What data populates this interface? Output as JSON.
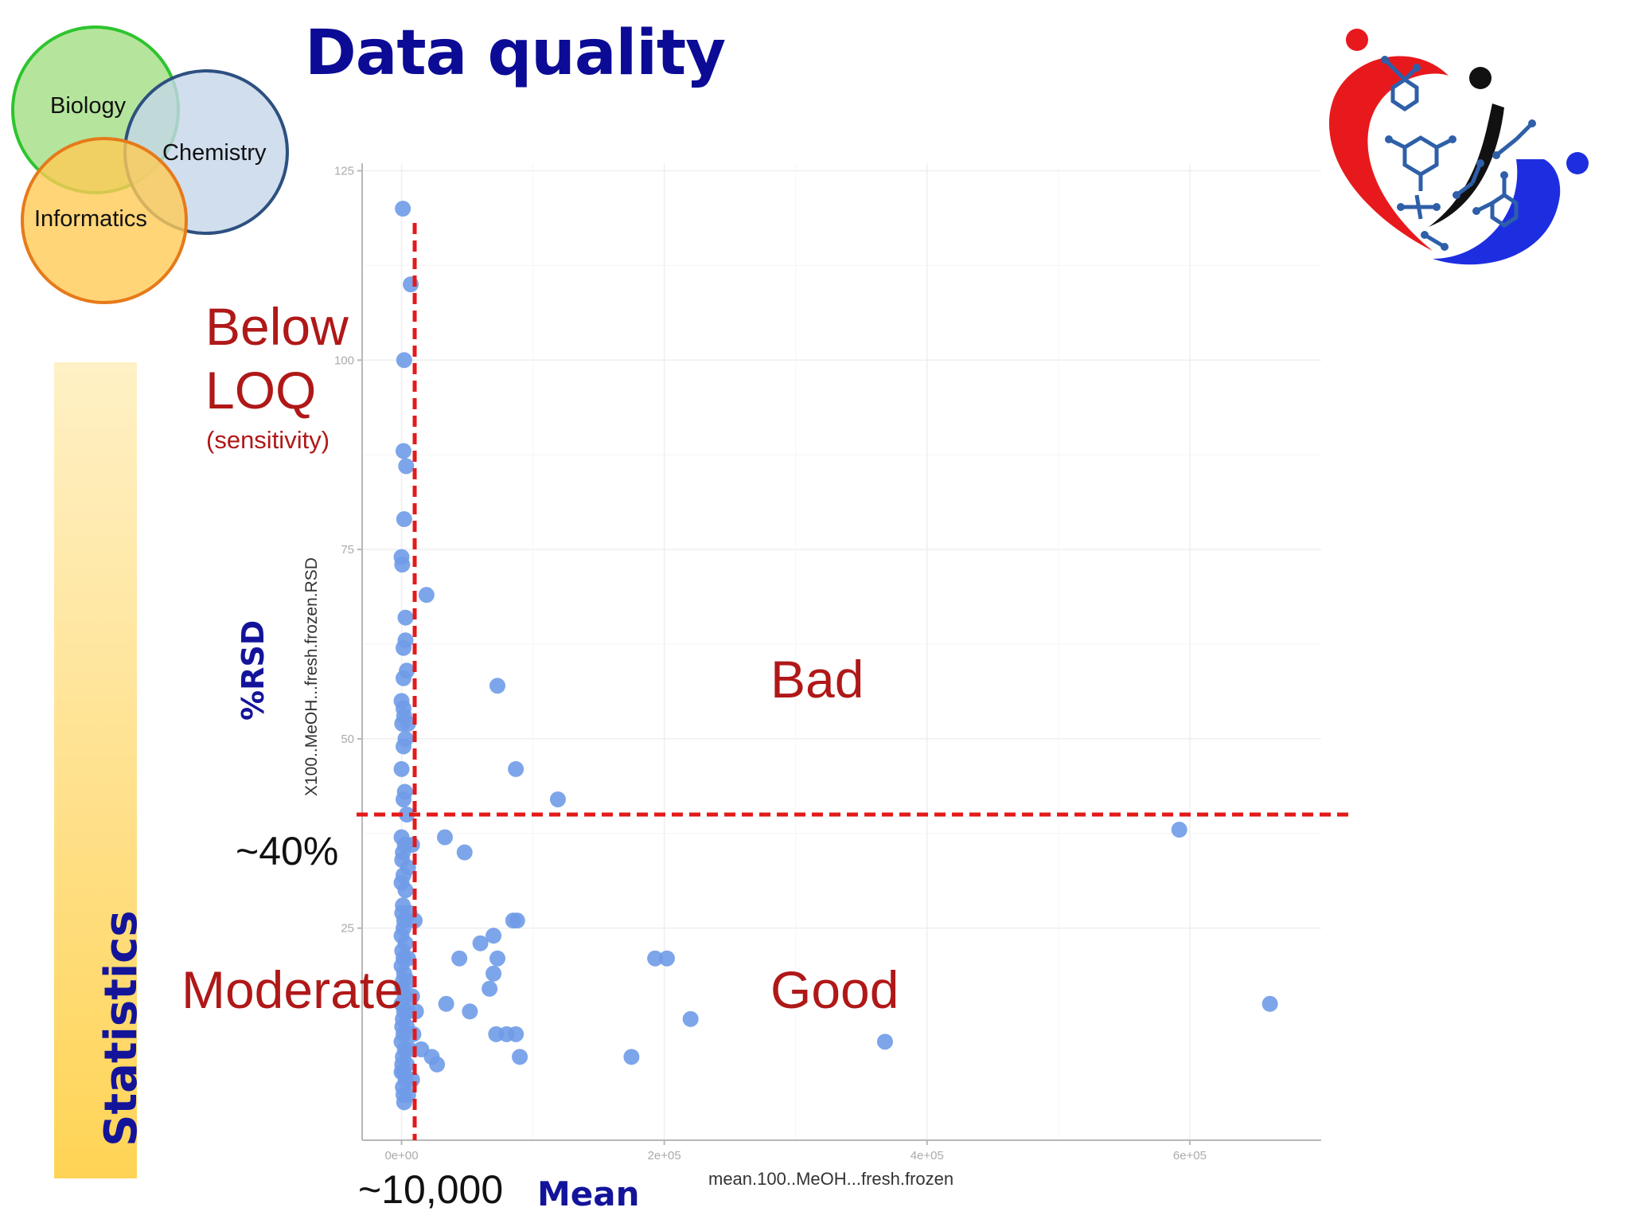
{
  "slide": {
    "title": "Data quality",
    "venn": {
      "biology": "Biology",
      "chemistry": "Chemistry",
      "informatics": "Informatics"
    },
    "side_label": "Statistics",
    "y_annotation": "%RSD",
    "x_annotation": "Mean",
    "regions": {
      "below_loq": [
        "Below",
        "LOQ"
      ],
      "below_loq_sub": "(sensitivity)",
      "bad": "Bad",
      "good": "Good",
      "moderate": "Moderate"
    },
    "thresholds": {
      "rsd_label": "~40%",
      "mean_label": "~10,000"
    },
    "colors": {
      "title": "#0b0b96",
      "region_text": "#b01818",
      "threshold_line": "#e31a1a",
      "points": "#6f9be8",
      "venn_biology": "#a8e08c",
      "venn_chemistry": "#c6d6ea",
      "venn_informatics": "#ffca55"
    },
    "logo": "molecule-heart-logo"
  },
  "chart_data": {
    "type": "scatter",
    "xlabel": "mean.100..MeOH...fresh.frozen",
    "ylabel": "X100..MeOH...fresh.frozen.RSD",
    "xlim": [
      -30000,
      700000
    ],
    "ylim": [
      -3,
      126
    ],
    "x_ticks": [
      0,
      200000,
      400000,
      600000
    ],
    "x_tick_labels": [
      "0e+00",
      "2e+05",
      "4e+05",
      "6e+05"
    ],
    "y_ticks": [
      25,
      50,
      75,
      100,
      125
    ],
    "y_tick_labels": [
      "25",
      "50",
      "75",
      "100",
      "125"
    ],
    "grid": true,
    "thresholds": {
      "x": 10000,
      "y": 40
    },
    "points": [
      [
        1000,
        120
      ],
      [
        7000,
        110
      ],
      [
        2000,
        100
      ],
      [
        1500,
        88
      ],
      [
        3500,
        86
      ],
      [
        2000,
        79
      ],
      [
        0,
        74
      ],
      [
        500,
        73
      ],
      [
        19000,
        69
      ],
      [
        3000,
        66
      ],
      [
        3000,
        63
      ],
      [
        1500,
        62
      ],
      [
        4000,
        59
      ],
      [
        1500,
        58
      ],
      [
        0,
        55
      ],
      [
        1500,
        54
      ],
      [
        2000,
        53
      ],
      [
        500,
        52
      ],
      [
        5000,
        52
      ],
      [
        3000,
        50
      ],
      [
        1500,
        49
      ],
      [
        0,
        46
      ],
      [
        2500,
        43
      ],
      [
        1500,
        42
      ],
      [
        4000,
        40
      ],
      [
        0,
        37
      ],
      [
        2500,
        36
      ],
      [
        8000,
        36
      ],
      [
        1000,
        35
      ],
      [
        500,
        34
      ],
      [
        5000,
        33
      ],
      [
        1500,
        32
      ],
      [
        0,
        31
      ],
      [
        3000,
        30
      ],
      [
        1000,
        28
      ],
      [
        500,
        27
      ],
      [
        6000,
        27
      ],
      [
        2000,
        26
      ],
      [
        10000,
        26
      ],
      [
        1500,
        25
      ],
      [
        0,
        24
      ],
      [
        3000,
        23
      ],
      [
        500,
        22
      ],
      [
        1500,
        21
      ],
      [
        5000,
        21
      ],
      [
        0,
        20
      ],
      [
        2000,
        19
      ],
      [
        1000,
        18
      ],
      [
        5000,
        18
      ],
      [
        500,
        17
      ],
      [
        2500,
        16
      ],
      [
        8000,
        16
      ],
      [
        0,
        15
      ],
      [
        2000,
        14
      ],
      [
        5000,
        14
      ],
      [
        11000,
        14
      ],
      [
        1000,
        13
      ],
      [
        500,
        12
      ],
      [
        4000,
        12
      ],
      [
        1500,
        11
      ],
      [
        9000,
        11
      ],
      [
        0,
        10
      ],
      [
        2500,
        9
      ],
      [
        6000,
        9
      ],
      [
        1000,
        8
      ],
      [
        500,
        7
      ],
      [
        4000,
        7
      ],
      [
        1500,
        6
      ],
      [
        0,
        6
      ],
      [
        3000,
        5
      ],
      [
        8000,
        5
      ],
      [
        1000,
        4
      ],
      [
        1500,
        3
      ],
      [
        5000,
        3
      ],
      [
        2000,
        2
      ],
      [
        15000,
        9
      ],
      [
        23000,
        8
      ],
      [
        33000,
        37
      ],
      [
        48000,
        35
      ],
      [
        60000,
        23
      ],
      [
        70000,
        24
      ],
      [
        85000,
        26
      ],
      [
        88000,
        26
      ],
      [
        44000,
        21
      ],
      [
        73000,
        21
      ],
      [
        67000,
        17
      ],
      [
        70000,
        19
      ],
      [
        34000,
        15
      ],
      [
        52000,
        14
      ],
      [
        72000,
        11
      ],
      [
        80000,
        11
      ],
      [
        87000,
        11
      ],
      [
        90000,
        8
      ],
      [
        27000,
        7
      ],
      [
        73000,
        57
      ],
      [
        87000,
        46
      ],
      [
        119000,
        42
      ],
      [
        175000,
        8
      ],
      [
        193000,
        21
      ],
      [
        202000,
        21
      ],
      [
        220000,
        13
      ],
      [
        368000,
        10
      ],
      [
        592000,
        38
      ],
      [
        661000,
        15
      ]
    ]
  }
}
